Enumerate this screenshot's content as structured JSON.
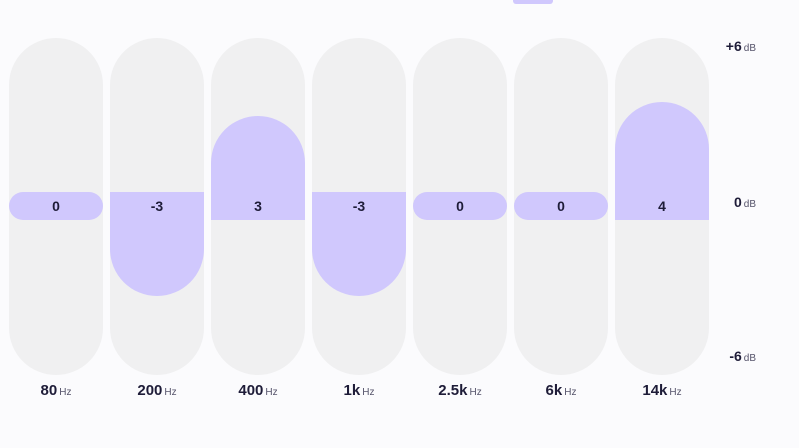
{
  "equalizer": {
    "range_db": [
      -6,
      6
    ],
    "accent_color": "#d0c8fd",
    "track_color": "#f0f0f1",
    "bands": [
      {
        "freq": "80",
        "unit": "Hz",
        "gain": 0,
        "label": "0"
      },
      {
        "freq": "200",
        "unit": "Hz",
        "gain": -3,
        "label": "-3"
      },
      {
        "freq": "400",
        "unit": "Hz",
        "gain": 3,
        "label": "3"
      },
      {
        "freq": "1k",
        "unit": "Hz",
        "gain": -3,
        "label": "-3"
      },
      {
        "freq": "2.5k",
        "unit": "Hz",
        "gain": 0,
        "label": "0"
      },
      {
        "freq": "6k",
        "unit": "Hz",
        "gain": 0,
        "label": "0"
      },
      {
        "freq": "14k",
        "unit": "Hz",
        "gain": 4,
        "label": "4"
      }
    ],
    "scale": {
      "top": {
        "value": "+6",
        "unit": "dB"
      },
      "middle": {
        "value": "0",
        "unit": "dB"
      },
      "bottom": {
        "value": "-6",
        "unit": "dB"
      }
    }
  }
}
